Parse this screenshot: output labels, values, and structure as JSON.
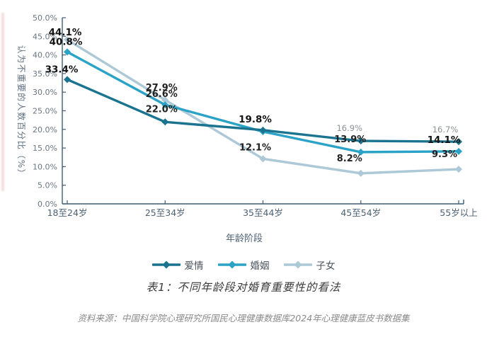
{
  "chart_data": {
    "type": "line",
    "title": "表1：不同年龄段对婚育重要性的看法",
    "xlabel": "年龄阶段",
    "ylabel": "认为不重要的人数百分比（%）",
    "categories": [
      "18至24岁",
      "25至34岁",
      "35至44岁",
      "45至54岁",
      "55岁以上"
    ],
    "ylim": [
      0,
      50
    ],
    "ytick_step": 5,
    "yticks": [
      "0.0%",
      "5.0%",
      "10.0%",
      "15.0%",
      "20.0%",
      "25.0%",
      "30.0%",
      "35.0%",
      "40.0%",
      "45.0%",
      "50.0%"
    ],
    "grid": false,
    "legend_position": "bottom",
    "axis_color": "#3f5d75",
    "series": [
      {
        "name": "爱情",
        "color": "#1a7490",
        "values": [
          33.4,
          22.0,
          19.8,
          16.9,
          16.7
        ],
        "labels": [
          "33.4%",
          "22.0%",
          "19.8%",
          "16.9%",
          "16.7%"
        ],
        "label_styles": [
          "bold",
          "normal",
          "bold",
          "muted",
          "muted"
        ],
        "label_offsets": [
          [
            -8,
            -10
          ],
          [
            -5,
            -14
          ],
          [
            -11,
            -11
          ],
          [
            -16,
            -14
          ],
          [
            -19,
            -13
          ]
        ]
      },
      {
        "name": "婚姻",
        "color": "#2ba3c6",
        "values": [
          40.8,
          26.6,
          19.4,
          13.9,
          14.1
        ],
        "labels": [
          "40.8%",
          "26.6%",
          null,
          "13.9%",
          "14.1%"
        ],
        "label_styles": [
          "bold",
          "normal",
          null,
          "normal",
          "bold"
        ],
        "label_offsets": [
          [
            -2,
            -10
          ],
          [
            -5,
            -11
          ],
          null,
          [
            -15,
            -14
          ],
          [
            -21,
            -12
          ]
        ]
      },
      {
        "name": "子女",
        "color": "#adc8d6",
        "values": [
          44.1,
          27.9,
          12.1,
          8.2,
          9.3
        ],
        "labels": [
          "44.1%",
          "27.9%",
          "12.1%",
          "8.2%",
          "9.3%"
        ],
        "label_styles": [
          "bold",
          "normal",
          "normal",
          "normal",
          "normal"
        ],
        "label_offsets": [
          [
            -3,
            -6
          ],
          [
            -5,
            -13
          ],
          [
            -11,
            -12
          ],
          [
            -16,
            -17
          ],
          [
            -20,
            -17
          ]
        ]
      }
    ]
  },
  "source_note": "资料来源：中国科学院心理研究所国民心理健康数据库2024年心理健康蓝皮书数据集"
}
